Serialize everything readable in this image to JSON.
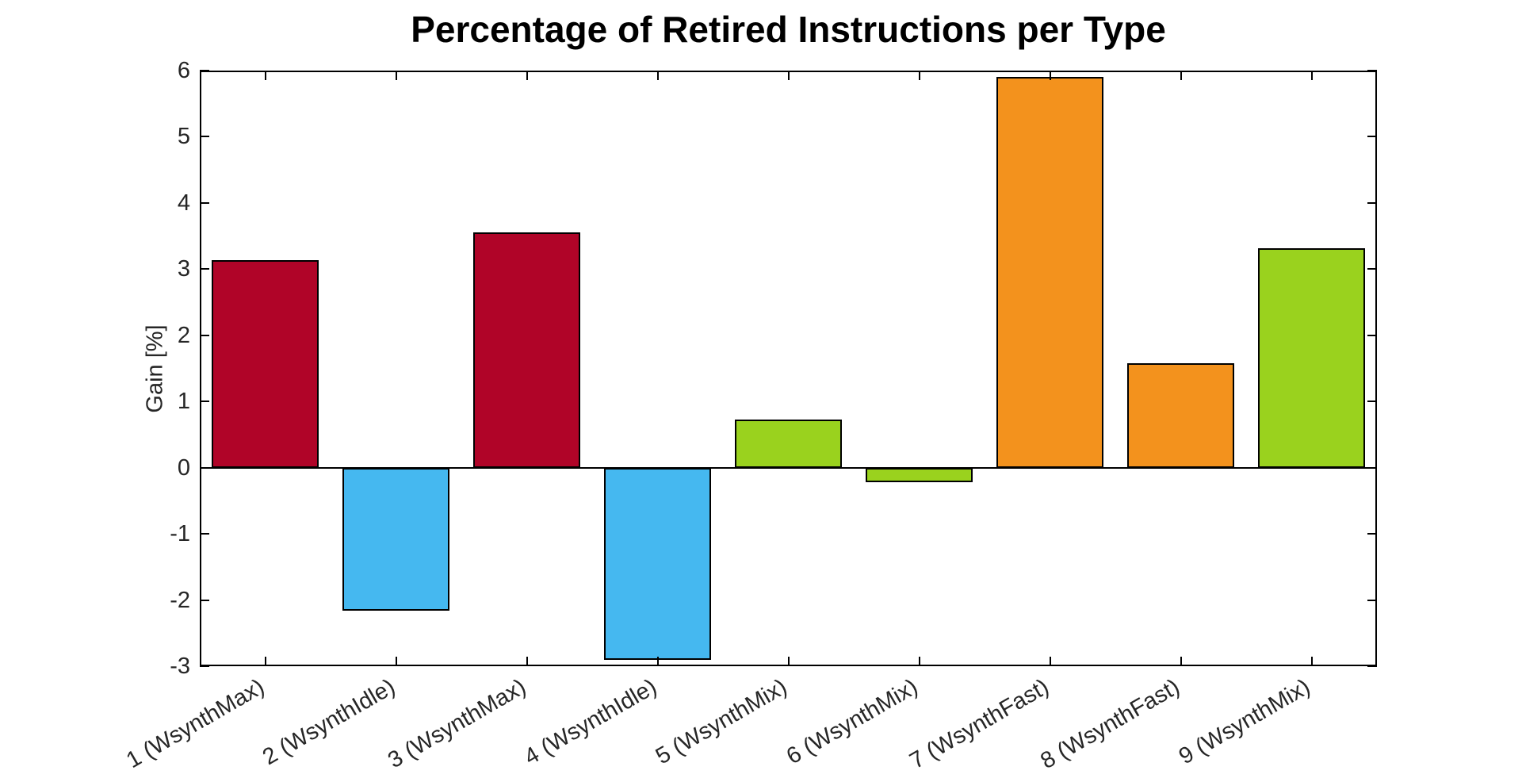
{
  "chart_data": {
    "type": "bar",
    "title": "Percentage of Retired Instructions per Type",
    "xlabel": "",
    "ylabel": "Gain [%]",
    "categories": [
      "1 (WsynthMax)",
      "2 (WsynthIdle)",
      "3 (WsynthMax)",
      "4 (WsynthIdle)",
      "5 (WsynthMix)",
      "6 (WsynthMix)",
      "7 (WsynthFast)",
      "8 (WsynthFast)",
      "9 (WsynthMix)"
    ],
    "values": [
      3.13,
      -2.16,
      3.55,
      -2.9,
      0.73,
      -0.22,
      5.9,
      1.58,
      3.31
    ],
    "bar_colors": [
      "#B00428",
      "#45B8F0",
      "#B00428",
      "#45B8F0",
      "#9AD21E",
      "#9AD21E",
      "#F3921D",
      "#F3921D",
      "#9AD21E"
    ],
    "color_legend": {
      "dark_red": "#B00428",
      "light_blue": "#45B8F0",
      "green": "#9AD21E",
      "orange": "#F3921D"
    },
    "ylim": [
      -3,
      6
    ],
    "yticks": [
      6,
      5,
      4,
      3,
      2,
      1,
      0,
      -1,
      -2,
      -3
    ],
    "grid": false,
    "legend_position": "none",
    "x_tick_label_rotation_deg": 30,
    "axis_text_color": "#262626"
  }
}
